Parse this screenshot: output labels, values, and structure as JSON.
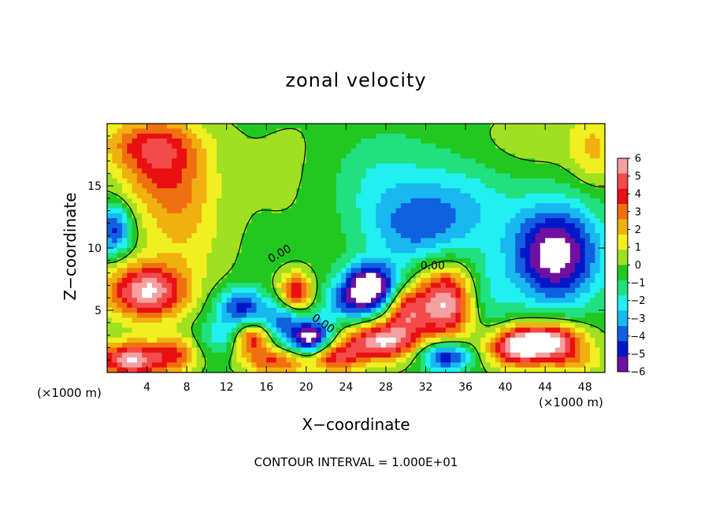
{
  "chart_data": {
    "type": "heatmap",
    "title": "zonal velocity",
    "xlabel": "X−coordinate",
    "ylabel": "Z−coordinate",
    "x_unit_label": "(×1000 m)",
    "xlim": [
      0,
      50
    ],
    "ylim": [
      0,
      20
    ],
    "x_ticks": [
      4,
      8,
      12,
      16,
      20,
      24,
      28,
      32,
      36,
      40,
      44,
      48
    ],
    "y_ticks": [
      5,
      10,
      15
    ],
    "colorbar": {
      "labels": [
        "6",
        "5",
        "4",
        "3",
        "2",
        "1",
        "0",
        "−1",
        "−2",
        "−3",
        "−4",
        "−5",
        "−6"
      ],
      "colors": [
        "#f4a0a0",
        "#f44a4a",
        "#e81010",
        "#f07010",
        "#f0b010",
        "#f0f020",
        "#a0e020",
        "#20c820",
        "#20e080",
        "#20f0f0",
        "#18b8f0",
        "#1060e0",
        "#0018c8",
        "#7010a0"
      ]
    },
    "contour_labels": [
      "0.00",
      "0.00",
      "0.00"
    ],
    "footer": "CONTOUR INTERVAL = 1.000E+01",
    "field_blobs": [
      {
        "x": 5.5,
        "z": 16.5,
        "v": 3.4,
        "rx": 4.5,
        "rz": 3.5
      },
      {
        "x": 7.5,
        "z": 12.0,
        "v": 2.0,
        "rx": 4.0,
        "rz": 4.0
      },
      {
        "x": 4.0,
        "z": 18.5,
        "v": 2.5,
        "rx": 5.0,
        "rz": 2.0
      },
      {
        "x": 22.0,
        "z": 16.0,
        "v": 0.8,
        "rx": 8.0,
        "rz": 5.0
      },
      {
        "x": 27.0,
        "z": 15.5,
        "v": -2.0,
        "rx": 6.0,
        "rz": 4.0
      },
      {
        "x": 31.0,
        "z": 11.5,
        "v": -3.0,
        "rx": 5.0,
        "rz": 3.0
      },
      {
        "x": 36.0,
        "z": 13.5,
        "v": -1.8,
        "rx": 5.0,
        "rz": 3.5
      },
      {
        "x": 43.0,
        "z": 18.5,
        "v": 0.8,
        "rx": 6.0,
        "rz": 2.5
      },
      {
        "x": 49.0,
        "z": 18.0,
        "v": 2.0,
        "rx": 2.5,
        "rz": 3.0
      },
      {
        "x": 0.8,
        "z": 11.5,
        "v": -4.5,
        "rx": 1.6,
        "rz": 2.0
      },
      {
        "x": 4.0,
        "z": 6.5,
        "v": 6.5,
        "rx": 4.0,
        "rz": 2.2
      },
      {
        "x": 2.5,
        "z": 1.0,
        "v": 6.5,
        "rx": 3.5,
        "rz": 1.4
      },
      {
        "x": 7.0,
        "z": 1.5,
        "v": 3.0,
        "rx": 2.0,
        "rz": 1.5
      },
      {
        "x": 13.5,
        "z": 5.3,
        "v": -4.5,
        "rx": 2.4,
        "rz": 1.4
      },
      {
        "x": 12.0,
        "z": 3.0,
        "v": -2.5,
        "rx": 2.5,
        "rz": 1.4
      },
      {
        "x": 14.5,
        "z": 2.7,
        "v": 5.0,
        "rx": 2.0,
        "rz": 1.3
      },
      {
        "x": 17.5,
        "z": 4.0,
        "v": -3.5,
        "rx": 2.0,
        "rz": 1.6
      },
      {
        "x": 19.0,
        "z": 6.5,
        "v": 5.0,
        "rx": 1.6,
        "rz": 1.4
      },
      {
        "x": 20.5,
        "z": 2.8,
        "v": -6.5,
        "rx": 2.0,
        "rz": 1.3
      },
      {
        "x": 17.0,
        "z": 0.8,
        "v": 4.0,
        "rx": 3.0,
        "rz": 1.0
      },
      {
        "x": 24.5,
        "z": 5.5,
        "v": -3.0,
        "rx": 3.0,
        "rz": 1.6
      },
      {
        "x": 26.5,
        "z": 7.0,
        "v": -6.5,
        "rx": 2.8,
        "rz": 1.8
      },
      {
        "x": 27.5,
        "z": 2.5,
        "v": 6.5,
        "rx": 3.5,
        "rz": 1.5
      },
      {
        "x": 23.0,
        "z": 1.2,
        "v": 4.5,
        "rx": 2.5,
        "rz": 1.2
      },
      {
        "x": 30.0,
        "z": 5.0,
        "v": 4.5,
        "rx": 2.0,
        "rz": 2.0
      },
      {
        "x": 34.0,
        "z": 5.5,
        "v": 6.5,
        "rx": 2.8,
        "rz": 3.0
      },
      {
        "x": 34.0,
        "z": 1.3,
        "v": -5.5,
        "rx": 2.5,
        "rz": 1.2
      },
      {
        "x": 38.0,
        "z": 6.0,
        "v": -1.5,
        "rx": 2.5,
        "rz": 3.0
      },
      {
        "x": 45.0,
        "z": 9.5,
        "v": -6.5,
        "rx": 4.5,
        "rz": 4.0
      },
      {
        "x": 41.0,
        "z": 2.0,
        "v": 5.5,
        "rx": 3.0,
        "rz": 1.5
      },
      {
        "x": 44.5,
        "z": 2.5,
        "v": 6.5,
        "rx": 3.5,
        "rz": 1.5
      },
      {
        "x": 47.0,
        "z": 0.8,
        "v": 2.0,
        "rx": 3.0,
        "rz": 1.0
      },
      {
        "x": 10.0,
        "z": 9.0,
        "v": 0.2,
        "rx": 3.0,
        "rz": 2.0
      }
    ]
  }
}
